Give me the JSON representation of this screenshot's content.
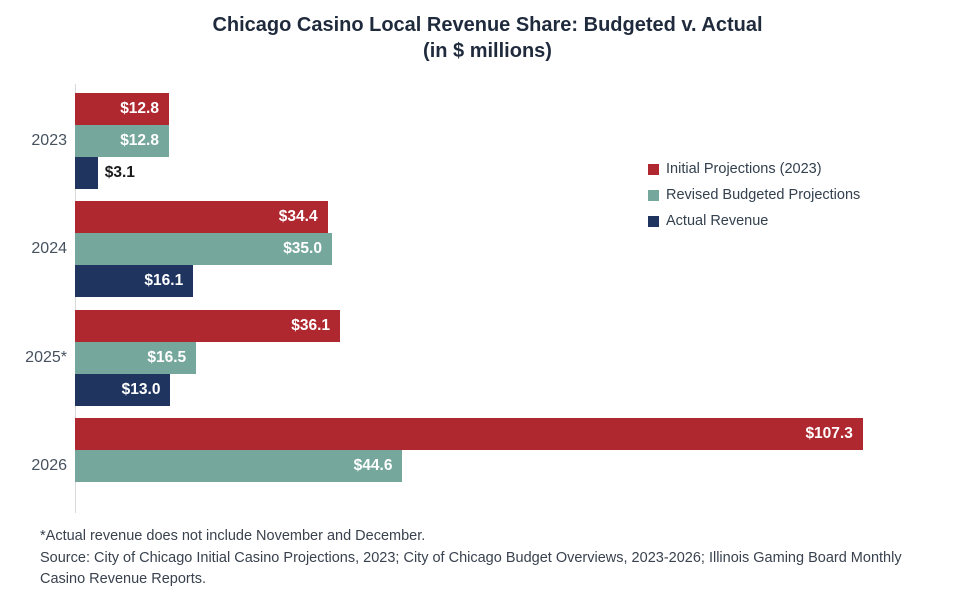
{
  "title": {
    "line1": "Chicago Casino Local Revenue Share: Budgeted v. Actual",
    "line2": "(in $ millions)"
  },
  "chart_data": {
    "type": "bar",
    "orientation": "horizontal",
    "title": "Chicago Casino Local Revenue Share: Budgeted v. Actual (in $ millions)",
    "categories": [
      "2023",
      "2024",
      "2025*",
      "2026"
    ],
    "series": [
      {
        "name": "Initial Projections (2023)",
        "color": "#B0282F",
        "values": [
          12.8,
          34.4,
          36.1,
          107.3
        ],
        "labels": [
          "$12.8",
          "$34.4",
          "$36.1",
          "$107.3"
        ]
      },
      {
        "name": "Revised Budgeted Projections",
        "color": "#76A79D",
        "values": [
          12.8,
          35.0,
          16.5,
          44.6
        ],
        "labels": [
          "$12.8",
          "$35.0",
          "$16.5",
          "$44.6"
        ]
      },
      {
        "name": "Actual Revenue",
        "color": "#1F3560",
        "values": [
          3.1,
          16.1,
          13.0,
          null
        ],
        "labels": [
          "$3.1",
          "$16.1",
          "$13.0",
          ""
        ]
      }
    ],
    "xlabel": "",
    "ylabel": "",
    "xlim": [
      0,
      122.3
    ],
    "grid": false,
    "legend_position": "right",
    "value_label_format": "$#.#"
  },
  "footnotes": {
    "note": "*Actual revenue does not include November and December.",
    "source": "Source: City of Chicago Initial Casino Projections, 2023;  City of Chicago Budget Overviews, 2023-2026; Illinois Gaming Board Monthly Casino Revenue Reports."
  }
}
